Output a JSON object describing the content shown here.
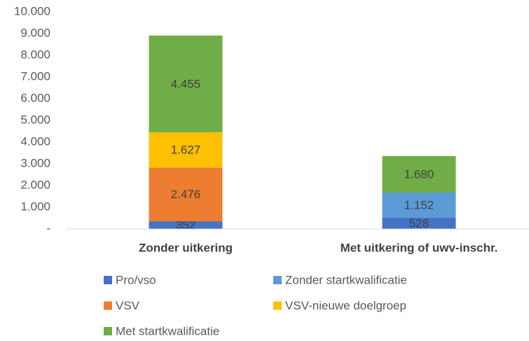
{
  "chart_data": {
    "type": "stacked_bar",
    "categories": [
      "Zonder uitkering",
      "Met uitkering of uwv-inschr."
    ],
    "series": [
      {
        "name": "Pro/vso",
        "color": "#4472c4",
        "values": [
          352,
          528
        ],
        "value_labels": [
          "352",
          "528"
        ]
      },
      {
        "name": "Zonder startkwalificatie",
        "color": "#5b9bd5",
        "values": [
          null,
          1152
        ],
        "value_labels": [
          null,
          "1.152"
        ]
      },
      {
        "name": "VSV",
        "color": "#ed7d31",
        "values": [
          2476,
          null
        ],
        "value_labels": [
          "2.476",
          null
        ]
      },
      {
        "name": "VSV-nieuwe doelgroep",
        "color": "#ffc000",
        "values": [
          1627,
          null
        ],
        "value_labels": [
          "1.627",
          null
        ]
      },
      {
        "name": "Met startkwalificatie",
        "color": "#70ad47",
        "values": [
          4455,
          1680
        ],
        "value_labels": [
          "4.455",
          "1.680"
        ]
      }
    ],
    "ylim": [
      0,
      10000
    ],
    "yticks": [
      {
        "value": 0,
        "label": "-"
      },
      {
        "value": 1000,
        "label": "1.000"
      },
      {
        "value": 2000,
        "label": "2.000"
      },
      {
        "value": 3000,
        "label": "3.000"
      },
      {
        "value": 4000,
        "label": "4.000"
      },
      {
        "value": 5000,
        "label": "5.000"
      },
      {
        "value": 6000,
        "label": "6.000"
      },
      {
        "value": 7000,
        "label": "7.000"
      },
      {
        "value": 8000,
        "label": "8.000"
      },
      {
        "value": 9000,
        "label": "9.000"
      },
      {
        "value": 10000,
        "label": "10.000"
      }
    ],
    "grid": false,
    "legend": "bottom"
  }
}
